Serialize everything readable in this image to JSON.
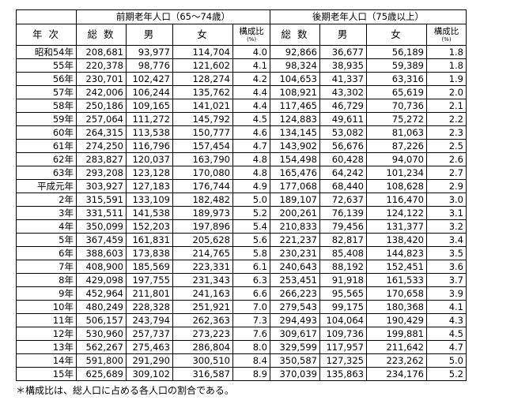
{
  "groups": [
    "前期老年人口（65〜74歳）",
    "後期老年人口（75歳以上）"
  ],
  "columns": {
    "year": "年 次",
    "total": "総 数",
    "male": "男",
    "female": "女",
    "ratio": "構成比",
    "ratio_unit": "(%)"
  },
  "rows": [
    [
      "昭和54年",
      "208,681",
      "93,977",
      "114,704",
      "4.0",
      "92,866",
      "36,677",
      "56,189",
      "1.8"
    ],
    [
      "55年",
      "220,378",
      "98,776",
      "121,602",
      "4.1",
      "98,324",
      "38,935",
      "59,389",
      "1.8"
    ],
    [
      "56年",
      "230,701",
      "102,427",
      "128,274",
      "4.2",
      "104,653",
      "41,337",
      "63,316",
      "1.9"
    ],
    [
      "57年",
      "242,006",
      "106,244",
      "135,762",
      "4.4",
      "108,921",
      "43,302",
      "65,619",
      "2.0"
    ],
    [
      "58年",
      "250,186",
      "109,165",
      "141,021",
      "4.4",
      "117,465",
      "46,729",
      "70,736",
      "2.1"
    ],
    [
      "59年",
      "257,064",
      "111,272",
      "145,792",
      "4.5",
      "124,883",
      "49,611",
      "75,272",
      "2.2"
    ],
    [
      "60年",
      "264,315",
      "113,538",
      "150,777",
      "4.6",
      "134,145",
      "53,082",
      "81,063",
      "2.3"
    ],
    [
      "61年",
      "274,250",
      "116,796",
      "157,454",
      "4.7",
      "143,902",
      "56,676",
      "87,226",
      "2.5"
    ],
    [
      "62年",
      "283,827",
      "120,037",
      "163,790",
      "4.8",
      "154,498",
      "60,428",
      "94,070",
      "2.6"
    ],
    [
      "63年",
      "293,208",
      "123,128",
      "170,080",
      "4.8",
      "165,476",
      "64,242",
      "101,234",
      "2.7"
    ],
    [
      "平成元年",
      "303,927",
      "127,183",
      "176,744",
      "4.9",
      "177,068",
      "68,440",
      "108,628",
      "2.9"
    ],
    [
      "2年",
      "315,591",
      "133,109",
      "182,482",
      "5.0",
      "189,107",
      "72,637",
      "116,470",
      "3.0"
    ],
    [
      "3年",
      "331,511",
      "141,538",
      "189,973",
      "5.2",
      "200,261",
      "76,139",
      "124,122",
      "3.1"
    ],
    [
      "4年",
      "350,099",
      "152,203",
      "197,896",
      "5.4",
      "210,833",
      "79,456",
      "131,377",
      "3.2"
    ],
    [
      "5年",
      "367,459",
      "161,831",
      "205,628",
      "5.6",
      "221,237",
      "82,817",
      "138,420",
      "3.4"
    ],
    [
      "6年",
      "388,603",
      "173,838",
      "214,765",
      "5.8",
      "230,231",
      "85,408",
      "144,823",
      "3.5"
    ],
    [
      "7年",
      "408,900",
      "185,569",
      "223,331",
      "6.1",
      "240,643",
      "88,192",
      "152,451",
      "3.6"
    ],
    [
      "8年",
      "429,098",
      "197,755",
      "231,343",
      "6.3",
      "253,451",
      "91,918",
      "161,533",
      "3.7"
    ],
    [
      "9年",
      "452,964",
      "211,801",
      "241,163",
      "6.6",
      "266,223",
      "95,565",
      "170,658",
      "3.9"
    ],
    [
      "10年",
      "480,249",
      "228,328",
      "251,921",
      "7.0",
      "279,543",
      "99,175",
      "180,368",
      "4.1"
    ],
    [
      "11年",
      "506,157",
      "243,794",
      "262,363",
      "7.3",
      "294,493",
      "104,064",
      "190,429",
      "4.3"
    ],
    [
      "12年",
      "530,960",
      "257,737",
      "273,223",
      "7.6",
      "309,617",
      "109,736",
      "199,881",
      "4.5"
    ],
    [
      "13年",
      "562,267",
      "275,463",
      "286,804",
      "8.0",
      "329,599",
      "117,957",
      "211,642",
      "4.7"
    ],
    [
      "14年",
      "591,800",
      "291,290",
      "300,510",
      "8.4",
      "350,587",
      "127,325",
      "223,262",
      "5.0"
    ],
    [
      "15年",
      "625,689",
      "309,102",
      "316,587",
      "8.9",
      "370,039",
      "135,863",
      "234,176",
      "5.2"
    ]
  ],
  "footnote": "＊構成比は、総人口に占める各人口の割合である。"
}
